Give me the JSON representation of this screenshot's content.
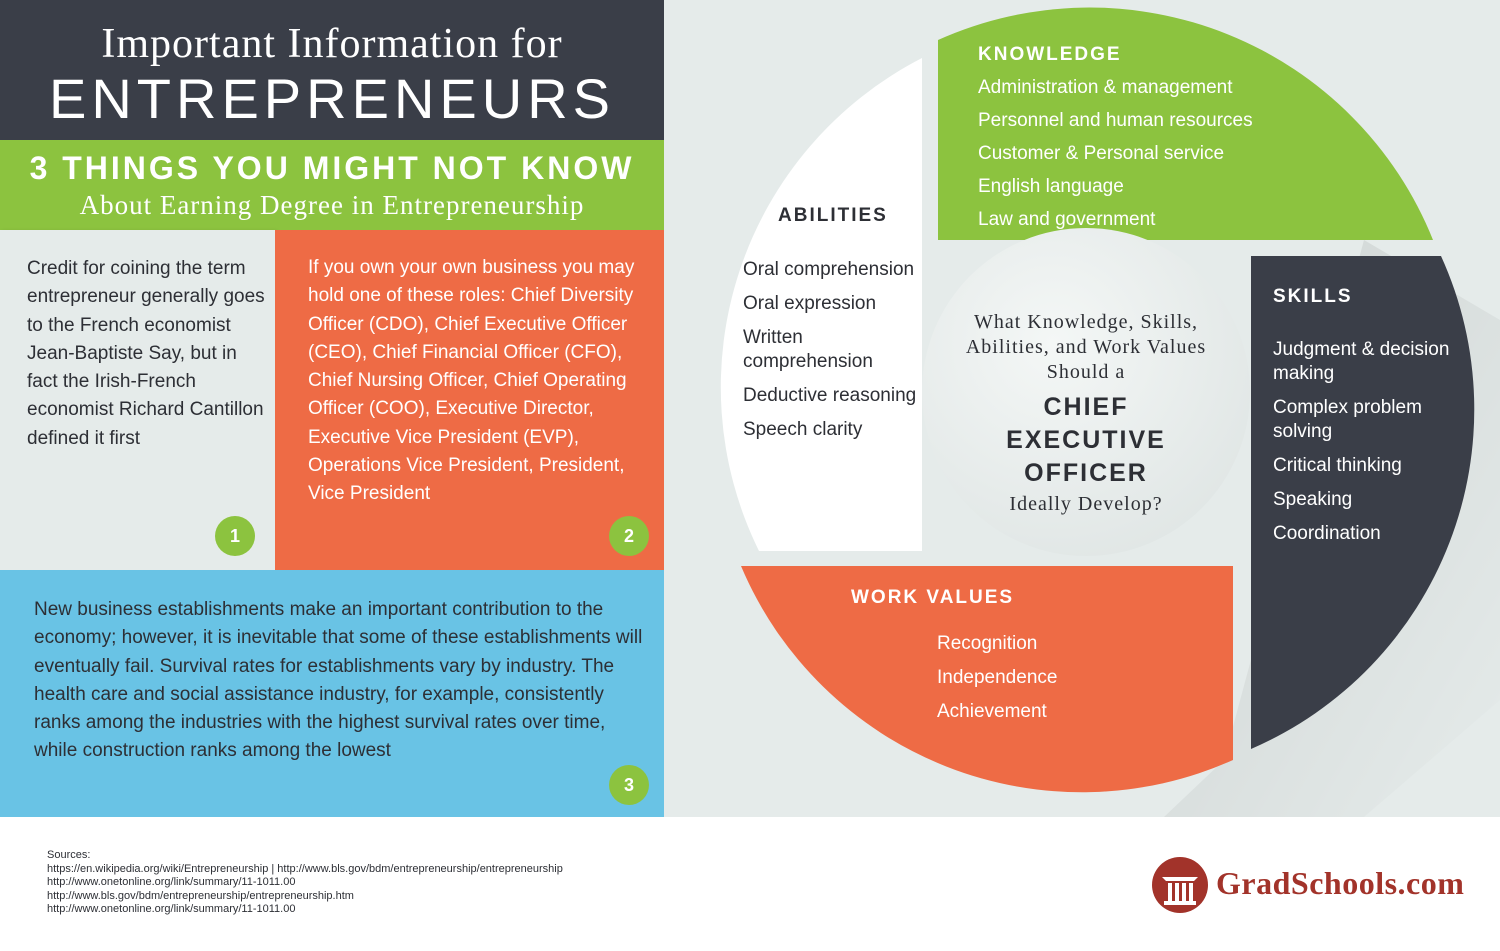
{
  "header": {
    "line1": "Important Information for",
    "line2": "ENTREPRENEURS"
  },
  "subheader": {
    "line1": "3 THINGS YOU MIGHT NOT KNOW",
    "line2": "About Earning Degree in  Entrepreneurship"
  },
  "facts": [
    {
      "number": "1",
      "text": "Credit for coining the term entrepreneur generally goes to the French economist Jean-Baptiste Say, but in fact the Irish-French economist Richard Cantillon defined it first"
    },
    {
      "number": "2",
      "text": "If you own your own business you may hold one of these roles: Chief Diversity Officer (CDO), Chief Executive Officer (CEO), Chief Financial Officer (CFO), Chief Nursing Officer, Chief Operating Officer (COO), Executive Director, Executive Vice President (EVP), Operations Vice President, President, Vice President"
    },
    {
      "number": "3",
      "text": "New business establishments make an important contribution to the economy; however, it is inevitable that some of these establishments will eventually fail. Survival rates for establishments vary by industry. The health care and social assistance industry, for example, consistently ranks among the industries with the highest survival rates over time, while construction ranks among the lowest"
    }
  ],
  "wheel": {
    "center": {
      "question": "What Knowledge, Skills, Abilities, and Work Values Should a",
      "role": "CHIEF EXECUTIVE OFFICER",
      "ending": "Ideally Develop?"
    },
    "knowledge": {
      "title": "KNOWLEDGE",
      "items": [
        "Administration & management",
        "Personnel and human resources",
        "Customer & Personal service",
        "English language",
        "Law and government"
      ]
    },
    "abilities": {
      "title": "ABILITIES",
      "items": [
        "Oral comprehension",
        "Oral expression",
        "Written comprehension",
        "Deductive reasoning",
        "Speech clarity"
      ]
    },
    "skills": {
      "title": "SKILLS",
      "items": [
        "Judgment & decision making",
        "Complex problem solving",
        "Critical thinking",
        "Speaking",
        "Coordination"
      ]
    },
    "work_values": {
      "title": "WORK VALUES",
      "items": [
        "Recognition",
        "Independence",
        "Achievement"
      ]
    }
  },
  "sources": {
    "label": "Sources:",
    "lines": [
      "https://en.wikipedia.org/wiki/Entrepreneurship | http://www.bls.gov/bdm/entrepreneurship/entrepreneurship",
      "http://www.onetonline.org/link/summary/11-1011.00",
      "http://www.bls.gov/bdm/entrepreneurship/entrepreneurship.htm",
      "http://www.onetonline.org/link/summary/11-1011.00"
    ]
  },
  "logo": {
    "text": "GradSchools.com",
    "icon": "column-icon"
  },
  "colors": {
    "dark": "#3a3e48",
    "green": "#8cc33f",
    "orange": "#ee6b45",
    "blue": "#69c3e5",
    "light": "#e5ebea",
    "brand_red": "#a2332a"
  }
}
